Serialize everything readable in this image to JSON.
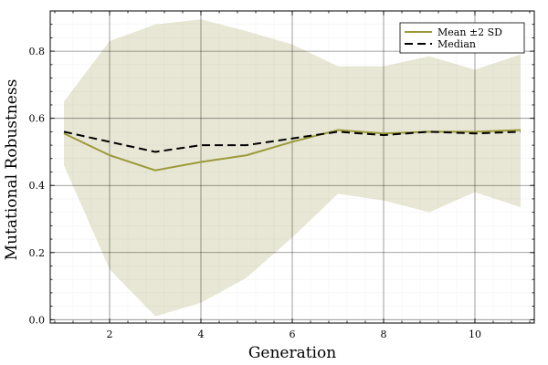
{
  "chart_data": {
    "type": "line",
    "xlabel": "Generation",
    "ylabel": "Mutational Robustness",
    "xlim": [
      0.7,
      11.3
    ],
    "ylim": [
      -0.01,
      0.92
    ],
    "x_ticks": [
      2,
      4,
      6,
      8,
      10
    ],
    "y_ticks": [
      0.0,
      0.2,
      0.4,
      0.6,
      0.8
    ],
    "x_tick_labels": [
      "2",
      "4",
      "6",
      "8",
      "10"
    ],
    "y_tick_labels": [
      "0.0",
      "0.2",
      "0.4",
      "0.6",
      "0.8"
    ],
    "grid": true,
    "legend_position": "top-right",
    "x": [
      1,
      2,
      3,
      4,
      5,
      6,
      7,
      8,
      9,
      10,
      11
    ],
    "series": [
      {
        "name": "Mean ±2 SD",
        "style": "solid",
        "color": "#9a9a3a",
        "values": [
          0.555,
          0.49,
          0.445,
          0.47,
          0.49,
          0.53,
          0.565,
          0.555,
          0.56,
          0.56,
          0.565
        ],
        "band_upper": [
          0.65,
          0.83,
          0.88,
          0.895,
          0.86,
          0.82,
          0.755,
          0.755,
          0.785,
          0.745,
          0.79
        ],
        "band_lower": [
          0.46,
          0.15,
          0.01,
          0.05,
          0.125,
          0.245,
          0.375,
          0.355,
          0.32,
          0.38,
          0.335
        ],
        "band_color": "#e8e7d5"
      },
      {
        "name": "Median",
        "style": "dashed",
        "color": "#000000",
        "values": [
          0.56,
          0.53,
          0.5,
          0.52,
          0.52,
          0.54,
          0.56,
          0.55,
          0.56,
          0.555,
          0.56
        ]
      }
    ]
  }
}
